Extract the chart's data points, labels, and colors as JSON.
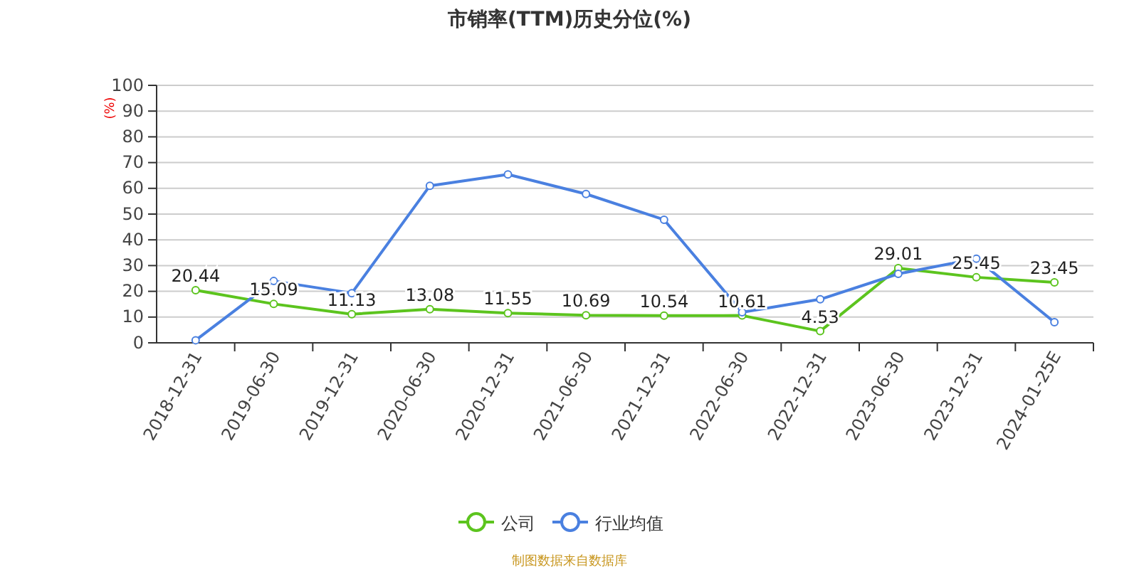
{
  "chart_data": {
    "type": "line",
    "title": "市销率(TTM)历史分位(%)",
    "ylabel": "(%)",
    "categories": [
      "2018-12-31",
      "2019-06-30",
      "2019-12-31",
      "2020-06-30",
      "2020-12-31",
      "2021-06-30",
      "2021-12-31",
      "2022-06-30",
      "2022-12-31",
      "2023-06-30",
      "2023-12-31",
      "2024-01-25E"
    ],
    "series": [
      {
        "name": "公司",
        "color": "#5cc41e",
        "values": [
          20.44,
          15.09,
          11.13,
          13.08,
          11.55,
          10.69,
          10.54,
          10.61,
          4.53,
          29.01,
          25.45,
          23.45
        ],
        "value_labels": [
          "20.44",
          "15.09",
          "11.13",
          "13.08",
          "11.55",
          "10.69",
          "10.54",
          "10.61",
          "4.53",
          "29.01",
          "25.45",
          "23.45"
        ]
      },
      {
        "name": "行业均值",
        "color": "#4a80e0",
        "values": [
          1,
          24,
          19.3,
          61,
          65.4,
          57.8,
          47.8,
          11.9,
          16.9,
          26.8,
          32.7,
          8
        ]
      }
    ],
    "ylim": [
      0,
      100
    ],
    "yticks": [
      0,
      10,
      20,
      30,
      40,
      50,
      60,
      70,
      80,
      90,
      100
    ],
    "grid": "y",
    "legend": "bottom",
    "marker": "circle",
    "line_style": "solid",
    "annotations": [
      "制图数据来自数据库"
    ]
  }
}
